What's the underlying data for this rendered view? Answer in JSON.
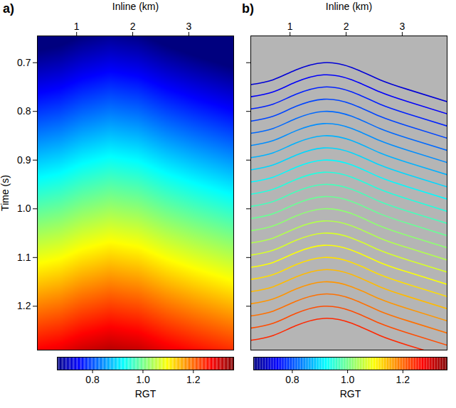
{
  "chart_data": [
    {
      "type": "heatmap",
      "panel": "a)",
      "xlabel": "Inline (km)",
      "ylabel": "Time (s)",
      "xlim": [
        0.3,
        3.8
      ],
      "xticks": [
        1,
        2,
        3
      ],
      "ylim": [
        0.645,
        1.29
      ],
      "yticks": [
        0.7,
        0.8,
        0.9,
        {
          "value": 1,
          "label": "1.0"
        },
        1.1,
        1.2
      ],
      "x": [
        0.3,
        0.7,
        1.1,
        1.6,
        2.1,
        2.6,
        3.1,
        3.8
      ],
      "y": [
        0.645,
        0.8,
        0.95,
        1.1,
        1.29
      ],
      "cells": [
        [
          0.63,
          0.64,
          0.66,
          0.675,
          0.665,
          0.64,
          0.62,
          0.595
        ],
        [
          0.785,
          0.795,
          0.815,
          0.83,
          0.82,
          0.795,
          0.775,
          0.75
        ],
        [
          0.935,
          0.945,
          0.965,
          0.98,
          0.97,
          0.945,
          0.925,
          0.9
        ],
        [
          1.085,
          1.095,
          1.115,
          1.13,
          1.12,
          1.095,
          1.075,
          1.05
        ],
        [
          1.275,
          1.285,
          1.305,
          1.32,
          1.31,
          1.285,
          1.265,
          1.24
        ]
      ],
      "colorbar": {
        "label": "RGT",
        "range": [
          0.66,
          1.36
        ],
        "ticks": [
          0.8,
          {
            "value": 1,
            "label": "1.0"
          },
          1.2
        ]
      }
    },
    {
      "type": "line",
      "panel": "b)",
      "xlabel": "Inline (km)",
      "tick_labels": "x",
      "xlim": [
        0.3,
        3.8
      ],
      "xticks": [
        1,
        2,
        3
      ],
      "ylim": [
        0.645,
        1.29
      ],
      "yticks": [
        0.7,
        0.8,
        0.9,
        {
          "value": 1,
          "label": "1.0"
        },
        1.1,
        1.2
      ],
      "x": [
        0.3,
        0.7,
        1.1,
        1.6,
        2.1,
        2.6,
        3.1,
        3.8
      ],
      "horizons": [
        {
          "rgt": 0.72,
          "times": [
            0.745,
            0.735,
            0.715,
            0.7,
            0.71,
            0.735,
            0.755,
            0.78
          ]
        },
        {
          "rgt": 0.745,
          "times": [
            0.77,
            0.76,
            0.74,
            0.725,
            0.735,
            0.76,
            0.78,
            0.805
          ]
        },
        {
          "rgt": 0.77,
          "times": [
            0.795,
            0.785,
            0.765,
            0.75,
            0.76,
            0.785,
            0.805,
            0.83
          ]
        },
        {
          "rgt": 0.795,
          "times": [
            0.82,
            0.81,
            0.79,
            0.775,
            0.785,
            0.81,
            0.83,
            0.855
          ]
        },
        {
          "rgt": 0.82,
          "times": [
            0.845,
            0.835,
            0.815,
            0.8,
            0.81,
            0.835,
            0.855,
            0.88
          ]
        },
        {
          "rgt": 0.845,
          "times": [
            0.87,
            0.86,
            0.84,
            0.825,
            0.835,
            0.86,
            0.88,
            0.905
          ]
        },
        {
          "rgt": 0.87,
          "times": [
            0.895,
            0.885,
            0.865,
            0.85,
            0.86,
            0.885,
            0.905,
            0.93
          ]
        },
        {
          "rgt": 0.895,
          "times": [
            0.92,
            0.91,
            0.89,
            0.875,
            0.885,
            0.91,
            0.93,
            0.955
          ]
        },
        {
          "rgt": 0.92,
          "times": [
            0.945,
            0.935,
            0.915,
            0.9,
            0.91,
            0.935,
            0.955,
            0.98
          ]
        },
        {
          "rgt": 0.945,
          "times": [
            0.97,
            0.96,
            0.94,
            0.925,
            0.935,
            0.96,
            0.98,
            1.005
          ]
        },
        {
          "rgt": 0.97,
          "times": [
            0.995,
            0.985,
            0.965,
            0.95,
            0.96,
            0.985,
            1.005,
            1.03
          ]
        },
        {
          "rgt": 0.995,
          "times": [
            1.02,
            1.01,
            0.99,
            0.975,
            0.985,
            1.01,
            1.03,
            1.055
          ]
        },
        {
          "rgt": 1.02,
          "times": [
            1.045,
            1.035,
            1.015,
            1.0,
            1.01,
            1.035,
            1.055,
            1.08
          ]
        },
        {
          "rgt": 1.045,
          "times": [
            1.07,
            1.06,
            1.04,
            1.025,
            1.035,
            1.06,
            1.08,
            1.105
          ]
        },
        {
          "rgt": 1.07,
          "times": [
            1.095,
            1.085,
            1.065,
            1.05,
            1.06,
            1.085,
            1.105,
            1.13
          ]
        },
        {
          "rgt": 1.095,
          "times": [
            1.12,
            1.11,
            1.09,
            1.075,
            1.085,
            1.11,
            1.13,
            1.155
          ]
        },
        {
          "rgt": 1.12,
          "times": [
            1.145,
            1.135,
            1.115,
            1.1,
            1.11,
            1.135,
            1.155,
            1.18
          ]
        },
        {
          "rgt": 1.145,
          "times": [
            1.17,
            1.16,
            1.14,
            1.125,
            1.135,
            1.16,
            1.18,
            1.205
          ]
        },
        {
          "rgt": 1.17,
          "times": [
            1.195,
            1.185,
            1.165,
            1.15,
            1.16,
            1.185,
            1.205,
            1.23
          ]
        },
        {
          "rgt": 1.195,
          "times": [
            1.22,
            1.21,
            1.19,
            1.175,
            1.185,
            1.21,
            1.23,
            1.255
          ]
        },
        {
          "rgt": 1.22,
          "times": [
            1.245,
            1.235,
            1.215,
            1.2,
            1.21,
            1.235,
            1.255,
            1.28
          ]
        },
        {
          "rgt": 1.245,
          "times": [
            1.27,
            1.26,
            1.24,
            1.225,
            1.235,
            1.26,
            1.28,
            1.305
          ]
        }
      ],
      "colorbar": {
        "label": "RGT",
        "range": [
          0.66,
          1.36
        ],
        "ticks": [
          0.8,
          {
            "value": 1,
            "label": "1.0"
          },
          1.2
        ]
      }
    }
  ]
}
